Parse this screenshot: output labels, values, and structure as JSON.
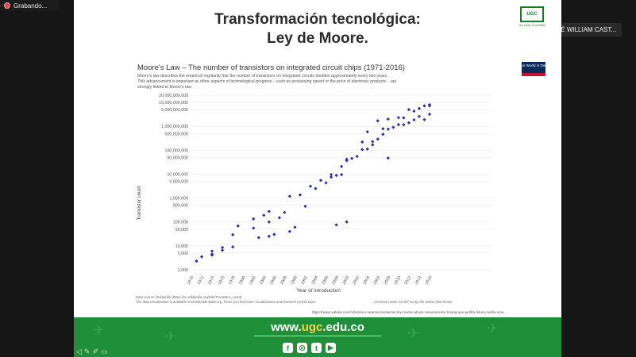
{
  "recording": {
    "label": "Grabando..."
  },
  "speaker": {
    "label": "Hablando: JOSÉ WILLIAM CAST..."
  },
  "slide": {
    "title_line1": "Transformación tecnológica:",
    "title_line2": "Ley de Moore.",
    "logo_text": "UGC",
    "logo_caption": "Un Gran Colombia"
  },
  "chart": {
    "brand": "Our World in Data",
    "subtitle_lines": [
      "Moore's law describes the empirical regularity that the number of transistors on integrated circuits doubles approximately every two years.",
      "This advancement is important as other aspects of technological progress – such as processing speed or the price of electronic products – are",
      "strongly linked to Moore's law."
    ],
    "source_line1": "Data source: Wikipedia (https://en.wikipedia.org/wiki/Transistor_count)",
    "source_line2": "The data visualization is available at OurWorldinData.org. There you find more visualizations and research on this topic.",
    "license": "Licensed under CC-BY-SA by the author Max Roser.",
    "url": "https://www.xataka.com/robotica-e-ia/antes-tenlamos-ley-moore-ahora-convenes-ley-huang-que-perfila-futuro-nvidia-ome..."
  },
  "chart_data": {
    "type": "scatter",
    "title": "Moore's Law – The number of transistors on integrated circuit chips (1971-2016)",
    "xlabel": "Year of introduction",
    "ylabel": "Transistor count",
    "yscale": "log",
    "xlim": [
      1970,
      2016
    ],
    "ylim": [
      1000,
      20000000000
    ],
    "x_ticks": [
      "1970",
      "1972",
      "1974",
      "1976",
      "1978",
      "1980",
      "1982",
      "1984",
      "1986",
      "1988",
      "1990",
      "1992",
      "1994",
      "1996",
      "1998",
      "2000",
      "2002",
      "2004",
      "2006",
      "2008",
      "2010",
      "2012",
      "2014",
      "2016"
    ],
    "y_ticks": [
      {
        "value": 1000,
        "label": "1,000"
      },
      {
        "value": 5000,
        "label": "5,000"
      },
      {
        "value": 10000,
        "label": "10,000"
      },
      {
        "value": 50000,
        "label": "50,000"
      },
      {
        "value": 100000,
        "label": "100,000"
      },
      {
        "value": 500000,
        "label": "500,000"
      },
      {
        "value": 1000000,
        "label": "1,000,000"
      },
      {
        "value": 5000000,
        "label": "5,000,000"
      },
      {
        "value": 10000000,
        "label": "10,000,000"
      },
      {
        "value": 50000000,
        "label": "50,000,000"
      },
      {
        "value": 100000000,
        "label": "100,000,000"
      },
      {
        "value": 500000000,
        "label": "500,000,000"
      },
      {
        "value": 1000000000,
        "label": "1,000,000,000"
      },
      {
        "value": 5000000000,
        "label": "5,000,000,000"
      },
      {
        "value": 10000000000,
        "label": "10,000,000,000"
      },
      {
        "value": 20000000000,
        "label": "20,000,000,000"
      }
    ],
    "marker_color": "#2b2ba8",
    "points": [
      [
        1971,
        2300
      ],
      [
        1972,
        3500
      ],
      [
        1974,
        4500
      ],
      [
        1974,
        6000
      ],
      [
        1976,
        6500
      ],
      [
        1974,
        4100
      ],
      [
        1976,
        8500
      ],
      [
        1978,
        9000
      ],
      [
        1978,
        29000
      ],
      [
        1979,
        68000
      ],
      [
        1982,
        134000
      ],
      [
        1982,
        55000
      ],
      [
        1983,
        22000
      ],
      [
        1984,
        190000
      ],
      [
        1985,
        275000
      ],
      [
        1985,
        25000
      ],
      [
        1986,
        30000
      ],
      [
        1987,
        150000
      ],
      [
        1988,
        250000
      ],
      [
        1989,
        1180000
      ],
      [
        1989,
        40000
      ],
      [
        1991,
        1350000
      ],
      [
        1993,
        3100000
      ],
      [
        1994,
        2500000
      ],
      [
        1995,
        5500000
      ],
      [
        1996,
        4300000
      ],
      [
        1997,
        7500000
      ],
      [
        1997,
        9500000
      ],
      [
        1998,
        8800000
      ],
      [
        1999,
        21000000
      ],
      [
        1999,
        9500000
      ],
      [
        2000,
        42000000
      ],
      [
        2000,
        37000000
      ],
      [
        2001,
        45000000
      ],
      [
        2002,
        55000000
      ],
      [
        2003,
        105900000
      ],
      [
        2003,
        220000000
      ],
      [
        2004,
        112000000
      ],
      [
        2004,
        592000000
      ],
      [
        2005,
        228000000
      ],
      [
        2005,
        169000000
      ],
      [
        2006,
        291000000
      ],
      [
        2006,
        1700000000
      ],
      [
        2007,
        463000000
      ],
      [
        2007,
        789000000
      ],
      [
        2008,
        758000000
      ],
      [
        2008,
        2000000000
      ],
      [
        2008,
        47000000
      ],
      [
        2009,
        904000000
      ],
      [
        2010,
        1170000000
      ],
      [
        2010,
        2300000000
      ],
      [
        2011,
        2270000000
      ],
      [
        2011,
        1160000000
      ],
      [
        2012,
        1400000000
      ],
      [
        2012,
        5000000000
      ],
      [
        2013,
        1860000000
      ],
      [
        2013,
        4310000000
      ],
      [
        2014,
        2600000000
      ],
      [
        2014,
        5560000000
      ],
      [
        2015,
        1900000000
      ],
      [
        2015,
        7200000000
      ],
      [
        2016,
        3200000000
      ],
      [
        2016,
        7100000000
      ],
      [
        2016,
        8000000000
      ],
      [
        2000,
        100000
      ],
      [
        1985,
        100000
      ],
      [
        1990,
        60000
      ],
      [
        1992,
        450000
      ],
      [
        1998,
        75000
      ]
    ]
  },
  "footer": {
    "url_prefix": "www.",
    "url_brand": "ugc",
    "url_suffix": ".edu.co",
    "social": [
      "f",
      "◎",
      "t",
      "▶"
    ]
  }
}
